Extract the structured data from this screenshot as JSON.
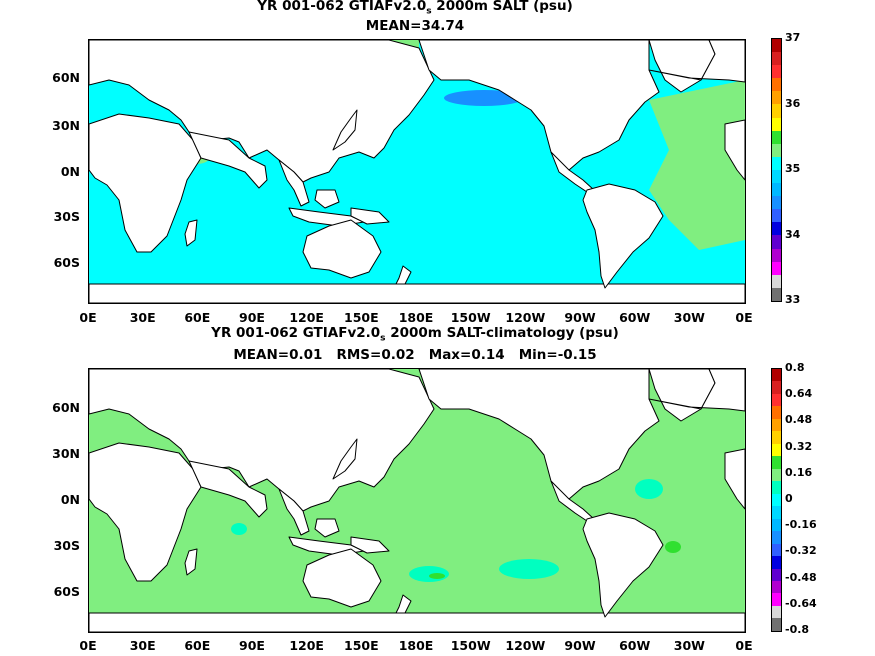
{
  "panels": [
    {
      "title_main": "YR 001-062 GTIAFv2.0",
      "title_sub": "s",
      "title_rest": " 2000m SALT (psu)",
      "stats": "MEAN=34.74",
      "field_color": "#00ffff",
      "colorbar": {
        "labels": [
          "37",
          "36",
          "35",
          "34",
          "33"
        ],
        "colors": [
          "#b00000",
          "#d82020",
          "#ff3030",
          "#ff7000",
          "#ffa000",
          "#ffd000",
          "#ffff00",
          "#30e030",
          "#80ee80",
          "#00ffff",
          "#00d8ff",
          "#00b8ff",
          "#1890ff",
          "#3060ff",
          "#0000e0",
          "#6000d0",
          "#b000d0",
          "#ff00ff",
          "#d8d8d8",
          "#707070"
        ]
      }
    },
    {
      "title_main": "YR 001-062 GTIAFv2.0",
      "title_sub": "s",
      "title_rest": " 2000m SALT-climatology (psu)",
      "stats": "MEAN=0.01   RMS=0.02   Max=0.14   Min=-0.15",
      "field_color": "#80ee80",
      "colorbar": {
        "labels": [
          "0.8",
          "0.64",
          "0.48",
          "0.32",
          "0.16",
          "0",
          "-0.16",
          "-0.32",
          "-0.48",
          "-0.64",
          "-0.8"
        ],
        "colors": [
          "#b00000",
          "#d82020",
          "#ff3030",
          "#ff7000",
          "#ffa000",
          "#ffd000",
          "#ffff00",
          "#30e030",
          "#80ee80",
          "#00ffc0",
          "#00ffff",
          "#00d8ff",
          "#00b8ff",
          "#1890ff",
          "#3060ff",
          "#0000e0",
          "#6000d0",
          "#b000d0",
          "#ff00ff",
          "#d8d8d8",
          "#707070"
        ]
      }
    }
  ],
  "axes": {
    "lat_labels": [
      "60N",
      "30N",
      "0N",
      "30S",
      "60S"
    ],
    "lon_labels": [
      "0E",
      "30E",
      "60E",
      "90E",
      "120E",
      "150E",
      "180E",
      "150W",
      "120W",
      "90W",
      "60W",
      "30W",
      "0E"
    ]
  },
  "colors": {
    "land": "#ffffff",
    "coast": "#000000"
  }
}
